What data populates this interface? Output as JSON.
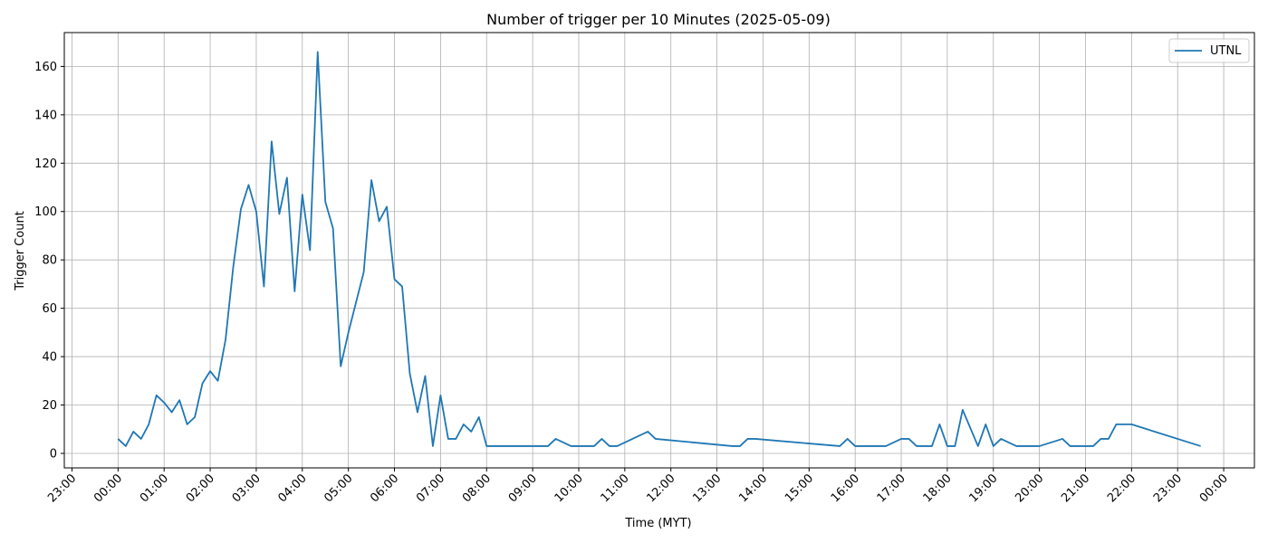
{
  "chart_data": {
    "type": "line",
    "title": "Number of trigger per 10 Minutes (2025-05-09)",
    "xlabel": "Time (MYT)",
    "ylabel": "Trigger Count",
    "x_unit": "time of day (HH:MM, MYT)",
    "x_range": [
      "2025-05-08 22:50",
      "2025-05-10 00:40"
    ],
    "ylim": [
      -6,
      174
    ],
    "grid": true,
    "legend_position": "top-right",
    "x_ticks": [
      "23:00",
      "00:00",
      "01:00",
      "02:00",
      "03:00",
      "04:00",
      "05:00",
      "06:00",
      "07:00",
      "08:00",
      "09:00",
      "10:00",
      "11:00",
      "12:00",
      "13:00",
      "14:00",
      "15:00",
      "16:00",
      "17:00",
      "18:00",
      "19:00",
      "20:00",
      "21:00",
      "22:00",
      "23:00",
      "00:00"
    ],
    "y_ticks": [
      0,
      20,
      40,
      60,
      80,
      100,
      120,
      140,
      160
    ],
    "series": [
      {
        "name": "UTNL",
        "color": "#1f77b4",
        "x": [
          "00:00",
          "00:10",
          "00:20",
          "00:30",
          "00:40",
          "00:50",
          "01:00",
          "01:10",
          "01:20",
          "01:30",
          "01:40",
          "01:50",
          "02:00",
          "02:10",
          "02:20",
          "02:30",
          "02:40",
          "02:50",
          "03:00",
          "03:10",
          "03:20",
          "03:30",
          "03:40",
          "03:50",
          "04:00",
          "04:10",
          "04:20",
          "04:30",
          "04:40",
          "04:50",
          "05:00",
          "05:20",
          "05:30",
          "05:40",
          "05:50",
          "06:00",
          "06:10",
          "06:20",
          "06:30",
          "06:40",
          "06:50",
          "07:00",
          "07:10",
          "07:20",
          "07:30",
          "07:40",
          "07:50",
          "08:00",
          "09:20",
          "09:30",
          "09:50",
          "10:20",
          "10:30",
          "10:40",
          "10:50",
          "11:30",
          "11:40",
          "13:20",
          "13:30",
          "13:40",
          "13:50",
          "15:40",
          "15:50",
          "16:00",
          "16:10",
          "16:40",
          "17:00",
          "17:10",
          "17:20",
          "17:40",
          "17:50",
          "18:00",
          "18:10",
          "18:20",
          "18:40",
          "18:50",
          "19:00",
          "19:10",
          "19:30",
          "20:00",
          "20:30",
          "20:40",
          "21:00",
          "21:10",
          "21:20",
          "21:30",
          "21:40",
          "22:00",
          "23:30"
        ],
        "values": [
          6,
          3,
          9,
          6,
          12,
          24,
          21,
          17,
          22,
          12,
          15,
          29,
          34,
          30,
          47,
          77,
          101,
          111,
          100,
          69,
          129,
          99,
          114,
          67,
          107,
          84,
          166,
          104,
          93,
          36,
          50,
          75,
          113,
          96,
          102,
          72,
          69,
          33,
          17,
          32,
          3,
          24,
          6,
          6,
          12,
          9,
          15,
          3,
          3,
          6,
          3,
          3,
          6,
          3,
          3,
          9,
          6,
          3,
          3,
          6,
          6,
          3,
          6,
          3,
          3,
          3,
          6,
          6,
          3,
          3,
          12,
          3,
          3,
          18,
          3,
          12,
          3,
          6,
          3,
          3,
          6,
          3,
          3,
          3,
          6,
          6,
          12,
          12,
          3
        ]
      }
    ]
  }
}
